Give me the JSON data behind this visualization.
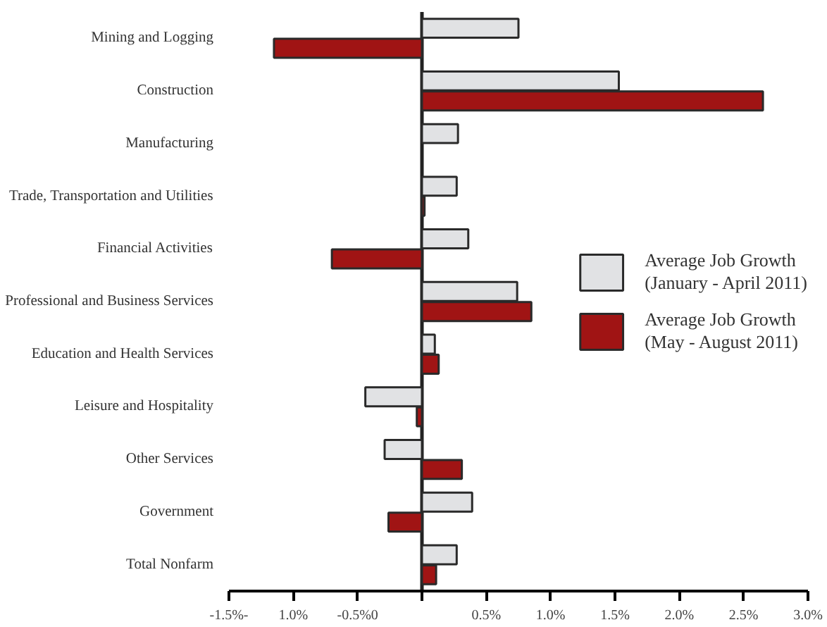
{
  "chart_data": {
    "type": "bar",
    "orientation": "horizontal",
    "categories": [
      "Mining and Logging",
      "Construction",
      "Manufacturing",
      "Trade, Transportation and Utilities",
      "Financial Activities",
      "Professional and Business Services",
      "Education and Health Services",
      "Leisure and Hospitality",
      "Other Services",
      "Government",
      "Total Nonfarm"
    ],
    "series": [
      {
        "name": "Average Job Growth\n(January - April 2011)",
        "color": "#e1e2e4",
        "values": [
          0.75,
          1.53,
          0.28,
          0.27,
          0.36,
          0.74,
          0.1,
          -0.44,
          -0.29,
          0.39,
          0.27
        ]
      },
      {
        "name": "Average Job Growth\n(May - August 2011)",
        "color": "#a01414",
        "values": [
          -1.15,
          2.65,
          null,
          0.02,
          -0.7,
          0.85,
          0.13,
          -0.04,
          0.31,
          -0.26,
          0.11
        ]
      }
    ],
    "xlim": [
      -1.5,
      3.0
    ],
    "xticks": [
      {
        "value": -1.5,
        "label": "-1.5%-"
      },
      {
        "value": -1.0,
        "label": "1.0%"
      },
      {
        "value": -0.5,
        "label": "-0.5%0"
      },
      {
        "value": 0,
        "label": null
      },
      {
        "value": 0.5,
        "label": "0.5%"
      },
      {
        "value": 1.0,
        "label": "1.0%"
      },
      {
        "value": 1.5,
        "label": "1.5%"
      },
      {
        "value": 2.0,
        "label": "2.0%"
      },
      {
        "value": 2.5,
        "label": "2.5%"
      },
      {
        "value": 3.0,
        "label": "3.0%"
      }
    ],
    "ref_lines": [
      {
        "axis": "x",
        "value": 0,
        "color": "#222222"
      }
    ],
    "grid": false,
    "legend": "right"
  }
}
